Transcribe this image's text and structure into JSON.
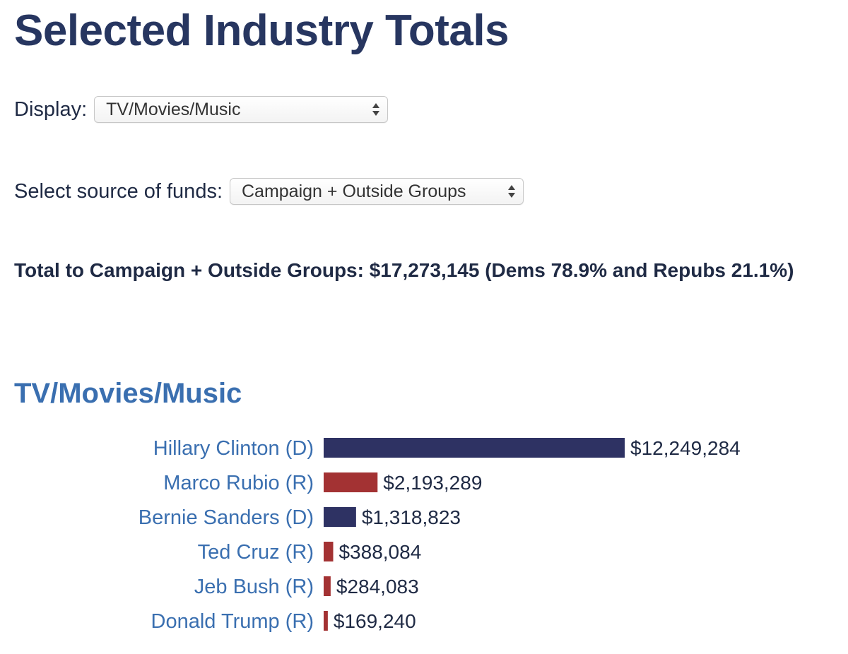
{
  "header": {
    "title": "Selected Industry Totals"
  },
  "display": {
    "label": "Display:",
    "selected": "TV/Movies/Music"
  },
  "source": {
    "label": "Select source of funds:",
    "selected": "Campaign + Outside Groups"
  },
  "summary": {
    "text": "Total to Campaign + Outside Groups: $17,273,145 (Dems 78.9% and Repubs 21.1%)"
  },
  "colors": {
    "dem": "#2e3263",
    "rep": "#a33233",
    "link": "#3a6fb0"
  },
  "chart_data": {
    "type": "bar",
    "orientation": "horizontal",
    "title": "TV/Movies/Music",
    "categories": [
      "Hillary Clinton (D)",
      "Marco Rubio (R)",
      "Bernie Sanders (D)",
      "Ted Cruz (R)",
      "Jeb Bush (R)",
      "Donald Trump (R)"
    ],
    "values": [
      12249284,
      2193289,
      1318823,
      388084,
      284083,
      169240
    ],
    "value_labels": [
      "$12,249,284",
      "$2,193,289",
      "$1,318,823",
      "$388,084",
      "$284,083",
      "$169,240"
    ],
    "party": [
      "D",
      "R",
      "D",
      "R",
      "R",
      "R"
    ],
    "grid": false,
    "legend": "none"
  }
}
